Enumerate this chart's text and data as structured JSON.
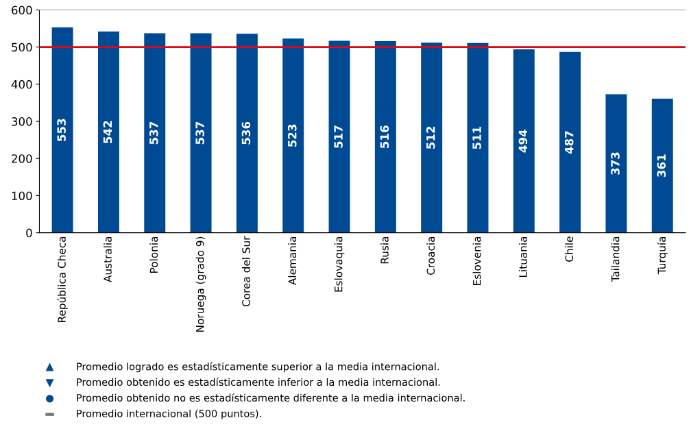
{
  "chart_data": {
    "type": "bar",
    "categories": [
      "República Checa",
      "Australia",
      "Polonia",
      "Noruega (grado 9)",
      "Corea del Sur",
      "Alemania",
      "Eslovaquia",
      "Rusia",
      "Croacia",
      "Eslovenia",
      "Lituania",
      "Chile",
      "Tailandia",
      "Turquía"
    ],
    "values": [
      553,
      542,
      537,
      537,
      536,
      523,
      517,
      516,
      512,
      511,
      494,
      487,
      373,
      361
    ],
    "color": "#004a93",
    "data_labels": true,
    "ylim": [
      0,
      600
    ],
    "yticks": [
      0,
      100,
      200,
      300,
      400,
      500,
      600
    ],
    "grid": false,
    "ref_lines": [
      {
        "axis": "y",
        "value": 500,
        "color": "#e30613"
      }
    ],
    "annotations": [
      "Promedio logrado es estadísticamente superior a la media internacional.",
      "Promedio obtenido es estadísticamente inferior a la media internacional.",
      "Promedio obtenido no es estadísticamente diferente a la media internacional.",
      "Promedio internacional (500 puntos)."
    ]
  }
}
